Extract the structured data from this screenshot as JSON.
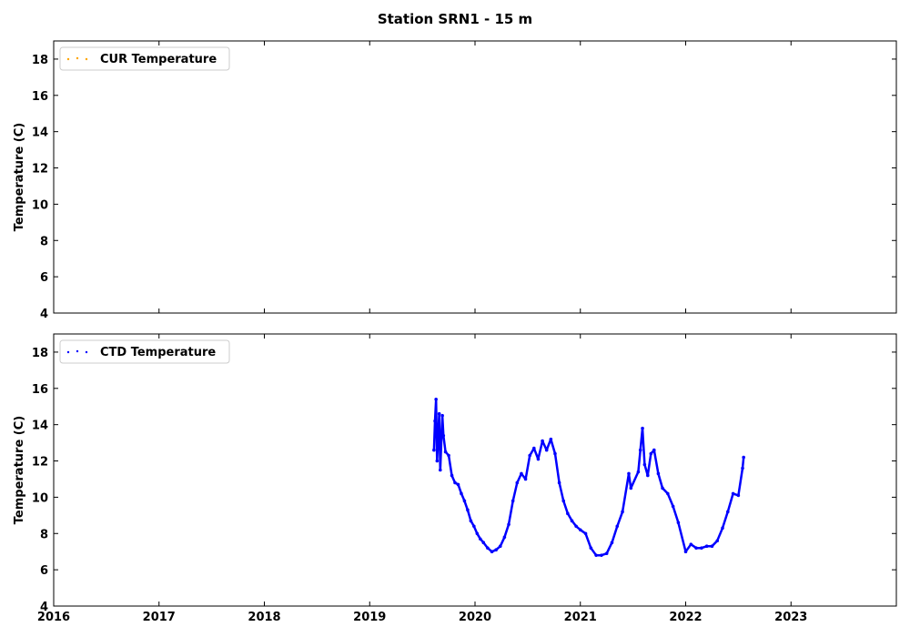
{
  "figure": {
    "title": "Station SRN1 - 15 m"
  },
  "chart_data": [
    {
      "type": "scatter",
      "panel": "top",
      "ylabel": "Temperature (C)",
      "xlabel": "",
      "xlim": [
        2016,
        2024
      ],
      "ylim": [
        4,
        19
      ],
      "yticks": [
        4,
        6,
        8,
        10,
        12,
        14,
        16,
        18
      ],
      "xticks": [
        2016,
        2017,
        2018,
        2019,
        2020,
        2021,
        2022,
        2023
      ],
      "show_xtick_labels": false,
      "legend_position": "top-left",
      "series": [
        {
          "name": "CUR Temperature",
          "color": "#ffa500",
          "points": []
        }
      ]
    },
    {
      "type": "scatter",
      "panel": "bottom",
      "ylabel": "Temperature (C)",
      "xlabel": "",
      "xlim": [
        2016,
        2024
      ],
      "ylim": [
        4,
        19
      ],
      "yticks": [
        4,
        6,
        8,
        10,
        12,
        14,
        16,
        18
      ],
      "xticks": [
        2016,
        2017,
        2018,
        2019,
        2020,
        2021,
        2022,
        2023
      ],
      "show_xtick_labels": true,
      "legend_position": "top-left",
      "series": [
        {
          "name": "CTD Temperature",
          "color": "#0000ff",
          "points": [
            [
              2019.61,
              12.6
            ],
            [
              2019.62,
              14.2
            ],
            [
              2019.63,
              15.4
            ],
            [
              2019.64,
              12.0
            ],
            [
              2019.66,
              14.6
            ],
            [
              2019.67,
              11.5
            ],
            [
              2019.69,
              14.5
            ],
            [
              2019.7,
              13.4
            ],
            [
              2019.72,
              12.5
            ],
            [
              2019.75,
              12.3
            ],
            [
              2019.78,
              11.2
            ],
            [
              2019.81,
              10.8
            ],
            [
              2019.84,
              10.7
            ],
            [
              2019.87,
              10.2
            ],
            [
              2019.9,
              9.8
            ],
            [
              2019.93,
              9.3
            ],
            [
              2019.96,
              8.7
            ],
            [
              2019.99,
              8.4
            ],
            [
              2020.02,
              8.0
            ],
            [
              2020.05,
              7.7
            ],
            [
              2020.08,
              7.5
            ],
            [
              2020.12,
              7.2
            ],
            [
              2020.16,
              7.0
            ],
            [
              2020.2,
              7.1
            ],
            [
              2020.24,
              7.3
            ],
            [
              2020.28,
              7.8
            ],
            [
              2020.32,
              8.5
            ],
            [
              2020.36,
              9.8
            ],
            [
              2020.4,
              10.8
            ],
            [
              2020.44,
              11.3
            ],
            [
              2020.48,
              11.0
            ],
            [
              2020.52,
              12.3
            ],
            [
              2020.56,
              12.7
            ],
            [
              2020.6,
              12.1
            ],
            [
              2020.64,
              13.1
            ],
            [
              2020.68,
              12.6
            ],
            [
              2020.72,
              13.2
            ],
            [
              2020.76,
              12.4
            ],
            [
              2020.8,
              10.8
            ],
            [
              2020.84,
              9.8
            ],
            [
              2020.88,
              9.1
            ],
            [
              2020.92,
              8.7
            ],
            [
              2020.96,
              8.4
            ],
            [
              2021.0,
              8.2
            ],
            [
              2021.05,
              8.0
            ],
            [
              2021.1,
              7.2
            ],
            [
              2021.15,
              6.8
            ],
            [
              2021.2,
              6.8
            ],
            [
              2021.25,
              6.9
            ],
            [
              2021.3,
              7.5
            ],
            [
              2021.35,
              8.4
            ],
            [
              2021.4,
              9.2
            ],
            [
              2021.46,
              11.3
            ],
            [
              2021.48,
              10.5
            ],
            [
              2021.55,
              11.4
            ],
            [
              2021.57,
              12.6
            ],
            [
              2021.59,
              13.8
            ],
            [
              2021.61,
              11.8
            ],
            [
              2021.64,
              11.2
            ],
            [
              2021.67,
              12.4
            ],
            [
              2021.7,
              12.6
            ],
            [
              2021.74,
              11.3
            ],
            [
              2021.78,
              10.5
            ],
            [
              2021.83,
              10.2
            ],
            [
              2021.88,
              9.5
            ],
            [
              2021.93,
              8.6
            ],
            [
              2022.0,
              7.0
            ],
            [
              2022.05,
              7.4
            ],
            [
              2022.1,
              7.2
            ],
            [
              2022.15,
              7.2
            ],
            [
              2022.2,
              7.3
            ],
            [
              2022.25,
              7.3
            ],
            [
              2022.3,
              7.6
            ],
            [
              2022.35,
              8.3
            ],
            [
              2022.4,
              9.2
            ],
            [
              2022.45,
              10.2
            ],
            [
              2022.5,
              10.1
            ],
            [
              2022.54,
              11.6
            ],
            [
              2022.55,
              12.2
            ]
          ]
        }
      ]
    }
  ]
}
